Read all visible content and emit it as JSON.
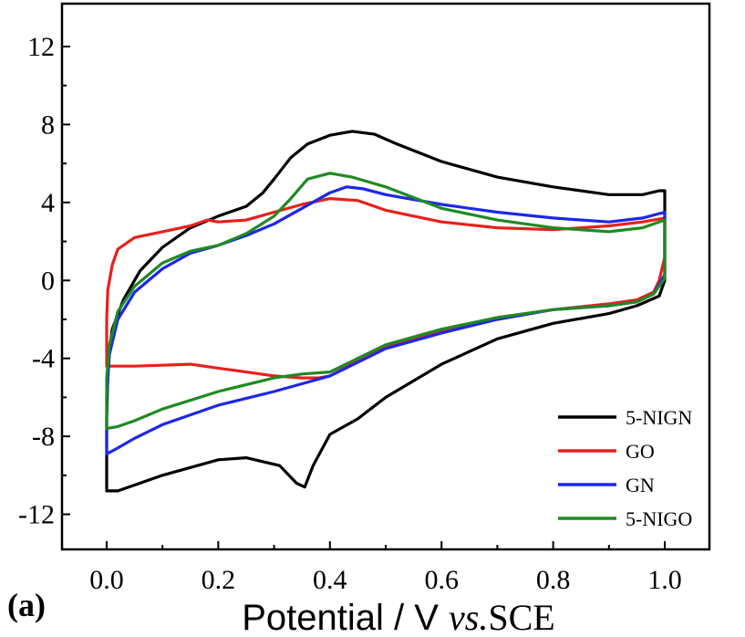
{
  "chart_data": {
    "type": "line",
    "panel_label": "(a)",
    "xlabel": {
      "prefix": "Potential / V ",
      "italic": "vs.",
      "suffix": "SCE"
    },
    "ylabel": "",
    "xlim": [
      -0.08,
      1.08
    ],
    "ylim": [
      -13.8,
      14.2
    ],
    "xticks": [
      0.0,
      0.2,
      0.4,
      0.6,
      0.8,
      1.0
    ],
    "xtick_labels": [
      "0.0",
      "0.2",
      "0.4",
      "0.6",
      "0.8",
      "1.0"
    ],
    "yticks": [
      -12,
      -8,
      -4,
      0,
      4,
      8,
      12
    ],
    "ytick_labels": [
      "-12",
      "-8",
      "-4",
      "0",
      "4",
      "8",
      "12"
    ],
    "grid": false,
    "legend_position": "bottom-right",
    "series": [
      {
        "name": "5-NIGN",
        "color": "#000000",
        "points": [
          [
            0.0,
            -10.7
          ],
          [
            0.0,
            -7.0
          ],
          [
            0.003,
            -4.0
          ],
          [
            0.01,
            -2.5
          ],
          [
            0.03,
            -1.0
          ],
          [
            0.06,
            0.5
          ],
          [
            0.1,
            1.7
          ],
          [
            0.15,
            2.7
          ],
          [
            0.2,
            3.3
          ],
          [
            0.25,
            3.8
          ],
          [
            0.28,
            4.5
          ],
          [
            0.3,
            5.2
          ],
          [
            0.33,
            6.3
          ],
          [
            0.36,
            7.0
          ],
          [
            0.4,
            7.45
          ],
          [
            0.44,
            7.65
          ],
          [
            0.48,
            7.5
          ],
          [
            0.52,
            7.0
          ],
          [
            0.6,
            6.1
          ],
          [
            0.7,
            5.3
          ],
          [
            0.8,
            4.8
          ],
          [
            0.9,
            4.4
          ],
          [
            0.96,
            4.4
          ],
          [
            0.99,
            4.6
          ],
          [
            1.0,
            4.6
          ],
          [
            1.0,
            2.0
          ],
          [
            1.0,
            0.0
          ],
          [
            0.99,
            -0.8
          ],
          [
            0.95,
            -1.3
          ],
          [
            0.9,
            -1.7
          ],
          [
            0.8,
            -2.2
          ],
          [
            0.7,
            -3.0
          ],
          [
            0.6,
            -4.3
          ],
          [
            0.5,
            -6.0
          ],
          [
            0.45,
            -7.1
          ],
          [
            0.4,
            -7.9
          ],
          [
            0.37,
            -9.5
          ],
          [
            0.355,
            -10.6
          ],
          [
            0.34,
            -10.4
          ],
          [
            0.31,
            -9.5
          ],
          [
            0.25,
            -9.1
          ],
          [
            0.2,
            -9.2
          ],
          [
            0.15,
            -9.6
          ],
          [
            0.1,
            -10.0
          ],
          [
            0.05,
            -10.5
          ],
          [
            0.02,
            -10.8
          ],
          [
            0.0,
            -10.8
          ]
        ]
      },
      {
        "name": "GO",
        "color": "#e8201c",
        "points": [
          [
            0.0,
            -4.4
          ],
          [
            0.0,
            -2.0
          ],
          [
            0.002,
            -0.5
          ],
          [
            0.01,
            0.8
          ],
          [
            0.02,
            1.6
          ],
          [
            0.05,
            2.2
          ],
          [
            0.1,
            2.5
          ],
          [
            0.15,
            2.8
          ],
          [
            0.18,
            3.1
          ],
          [
            0.2,
            3.0
          ],
          [
            0.25,
            3.1
          ],
          [
            0.3,
            3.5
          ],
          [
            0.35,
            3.9
          ],
          [
            0.4,
            4.2
          ],
          [
            0.45,
            4.1
          ],
          [
            0.5,
            3.6
          ],
          [
            0.6,
            3.0
          ],
          [
            0.7,
            2.7
          ],
          [
            0.8,
            2.6
          ],
          [
            0.9,
            2.8
          ],
          [
            0.96,
            3.0
          ],
          [
            1.0,
            3.2
          ],
          [
            1.0,
            1.2
          ],
          [
            0.99,
            0.0
          ],
          [
            0.98,
            -0.6
          ],
          [
            0.95,
            -1.0
          ],
          [
            0.9,
            -1.2
          ],
          [
            0.8,
            -1.5
          ],
          [
            0.7,
            -1.9
          ],
          [
            0.6,
            -2.6
          ],
          [
            0.5,
            -3.4
          ],
          [
            0.45,
            -4.1
          ],
          [
            0.4,
            -4.9
          ],
          [
            0.38,
            -5.0
          ],
          [
            0.35,
            -5.0
          ],
          [
            0.3,
            -4.9
          ],
          [
            0.2,
            -4.5
          ],
          [
            0.15,
            -4.3
          ],
          [
            0.1,
            -4.35
          ],
          [
            0.05,
            -4.4
          ],
          [
            0.0,
            -4.4
          ]
        ]
      },
      {
        "name": "GN",
        "color": "#1d28e6",
        "points": [
          [
            0.0,
            -8.9
          ],
          [
            0.0,
            -6.0
          ],
          [
            0.005,
            -3.8
          ],
          [
            0.02,
            -2.0
          ],
          [
            0.05,
            -0.6
          ],
          [
            0.1,
            0.6
          ],
          [
            0.15,
            1.4
          ],
          [
            0.2,
            1.8
          ],
          [
            0.25,
            2.3
          ],
          [
            0.3,
            2.9
          ],
          [
            0.35,
            3.7
          ],
          [
            0.4,
            4.5
          ],
          [
            0.43,
            4.8
          ],
          [
            0.46,
            4.7
          ],
          [
            0.5,
            4.4
          ],
          [
            0.6,
            3.9
          ],
          [
            0.7,
            3.5
          ],
          [
            0.8,
            3.2
          ],
          [
            0.9,
            3.0
          ],
          [
            0.96,
            3.2
          ],
          [
            1.0,
            3.5
          ],
          [
            1.0,
            1.5
          ],
          [
            1.0,
            0.3
          ],
          [
            0.98,
            -0.7
          ],
          [
            0.95,
            -1.1
          ],
          [
            0.9,
            -1.3
          ],
          [
            0.8,
            -1.5
          ],
          [
            0.7,
            -2.0
          ],
          [
            0.6,
            -2.7
          ],
          [
            0.5,
            -3.5
          ],
          [
            0.45,
            -4.2
          ],
          [
            0.4,
            -4.9
          ],
          [
            0.35,
            -5.3
          ],
          [
            0.3,
            -5.7
          ],
          [
            0.2,
            -6.4
          ],
          [
            0.1,
            -7.4
          ],
          [
            0.05,
            -8.1
          ],
          [
            0.02,
            -8.6
          ],
          [
            0.0,
            -8.9
          ]
        ]
      },
      {
        "name": "5-NIGO",
        "color": "#1f8a22",
        "points": [
          [
            0.0,
            -7.6
          ],
          [
            0.0,
            -5.0
          ],
          [
            0.005,
            -3.3
          ],
          [
            0.02,
            -1.6
          ],
          [
            0.05,
            -0.3
          ],
          [
            0.1,
            0.9
          ],
          [
            0.15,
            1.5
          ],
          [
            0.2,
            1.8
          ],
          [
            0.25,
            2.4
          ],
          [
            0.3,
            3.3
          ],
          [
            0.33,
            4.2
          ],
          [
            0.36,
            5.2
          ],
          [
            0.4,
            5.5
          ],
          [
            0.44,
            5.3
          ],
          [
            0.5,
            4.8
          ],
          [
            0.6,
            3.7
          ],
          [
            0.7,
            3.1
          ],
          [
            0.8,
            2.7
          ],
          [
            0.9,
            2.5
          ],
          [
            0.96,
            2.7
          ],
          [
            1.0,
            3.1
          ],
          [
            1.0,
            1.0
          ],
          [
            1.0,
            0.1
          ],
          [
            0.98,
            -0.7
          ],
          [
            0.95,
            -1.1
          ],
          [
            0.9,
            -1.3
          ],
          [
            0.8,
            -1.5
          ],
          [
            0.7,
            -1.9
          ],
          [
            0.6,
            -2.5
          ],
          [
            0.5,
            -3.3
          ],
          [
            0.45,
            -4.0
          ],
          [
            0.4,
            -4.7
          ],
          [
            0.35,
            -4.8
          ],
          [
            0.3,
            -5.0
          ],
          [
            0.2,
            -5.7
          ],
          [
            0.1,
            -6.6
          ],
          [
            0.05,
            -7.2
          ],
          [
            0.02,
            -7.5
          ],
          [
            0.0,
            -7.6
          ]
        ]
      }
    ]
  }
}
